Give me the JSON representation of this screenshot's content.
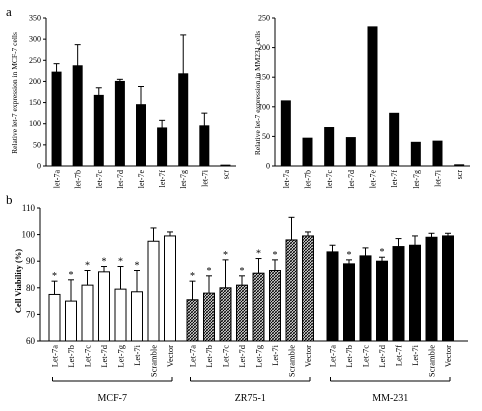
{
  "panel_labels": {
    "a": "a",
    "b": "b"
  },
  "chart_data": [
    {
      "id": "a-left",
      "type": "bar",
      "ylabel": "Relative let-7 expression in MCF-7 cells",
      "ylim": [
        0,
        350
      ],
      "yticks": [
        0,
        50,
        100,
        150,
        200,
        250,
        300,
        350
      ],
      "categories": [
        "let-7a",
        "let-7b",
        "let-7c",
        "let-7d",
        "let-7e",
        "let-7f",
        "let-7g",
        "let-7i",
        "scr"
      ],
      "values": [
        222,
        237,
        167,
        200,
        145,
        90,
        218,
        95,
        2
      ],
      "errors": [
        20,
        50,
        18,
        5,
        43,
        18,
        92,
        30,
        0
      ],
      "color": "#000000"
    },
    {
      "id": "a-right",
      "type": "bar",
      "ylabel": "Relative let-7 expression in MM231 cells",
      "ylim": [
        0,
        250
      ],
      "yticks": [
        0,
        50,
        100,
        150,
        200,
        250
      ],
      "categories": [
        "let-7a",
        "let-7b",
        "let-7c",
        "let-7d",
        "let-7e",
        "let-7f",
        "let-7g",
        "let-7i",
        "scr"
      ],
      "values": [
        110,
        47,
        65,
        48,
        235,
        89,
        40,
        42,
        2
      ],
      "color": "#000000"
    },
    {
      "id": "b",
      "type": "bar",
      "ylabel": "Cell Viability (%)",
      "ylim": [
        60,
        110
      ],
      "yticks": [
        60,
        70,
        80,
        90,
        100,
        110
      ],
      "groups": [
        {
          "name": "MCF-7",
          "fill": "white",
          "categories": [
            "Let-7a",
            "Let-7b",
            "Let-7c",
            "Let-7d",
            "Let-7g",
            "Let-7i",
            "Scramble",
            "Vector"
          ],
          "values": [
            77.5,
            75,
            81,
            86,
            79.5,
            78.5,
            97.5,
            99.5
          ],
          "errors": [
            5,
            8,
            5.5,
            2,
            8.5,
            8,
            5,
            1.5
          ],
          "stars": [
            "*",
            "*",
            "*",
            "*",
            "*",
            "*",
            "",
            ""
          ]
        },
        {
          "name": "ZR75-1",
          "fill": "hatch",
          "categories": [
            "Let-7a",
            "Let-7b",
            "Let-7c",
            "Let-7d",
            "Let-7g",
            "Let-7i",
            "Scramble",
            "Vector"
          ],
          "values": [
            75.5,
            78,
            80,
            81,
            85.5,
            86.5,
            98,
            99.5
          ],
          "errors": [
            7,
            6.5,
            10.5,
            3.5,
            5.5,
            4,
            8.5,
            1.5
          ],
          "stars": [
            "*",
            "*",
            "*",
            "*",
            "*",
            "*",
            "",
            ""
          ]
        },
        {
          "name": "MM-231",
          "fill": "black",
          "categories": [
            "Let-7a",
            "Let-7b",
            "Let-7c",
            "Let-7d",
            "Let-7f",
            "Let-7i",
            "Scramble",
            "Vector"
          ],
          "values": [
            93.5,
            89,
            92,
            90,
            95.5,
            96,
            99,
            99.5
          ],
          "errors": [
            2.5,
            1.5,
            3,
            1.5,
            3,
            3.5,
            1.5,
            1
          ],
          "stars": [
            "",
            "*",
            "",
            "*",
            "",
            "",
            "",
            ""
          ]
        }
      ]
    }
  ]
}
